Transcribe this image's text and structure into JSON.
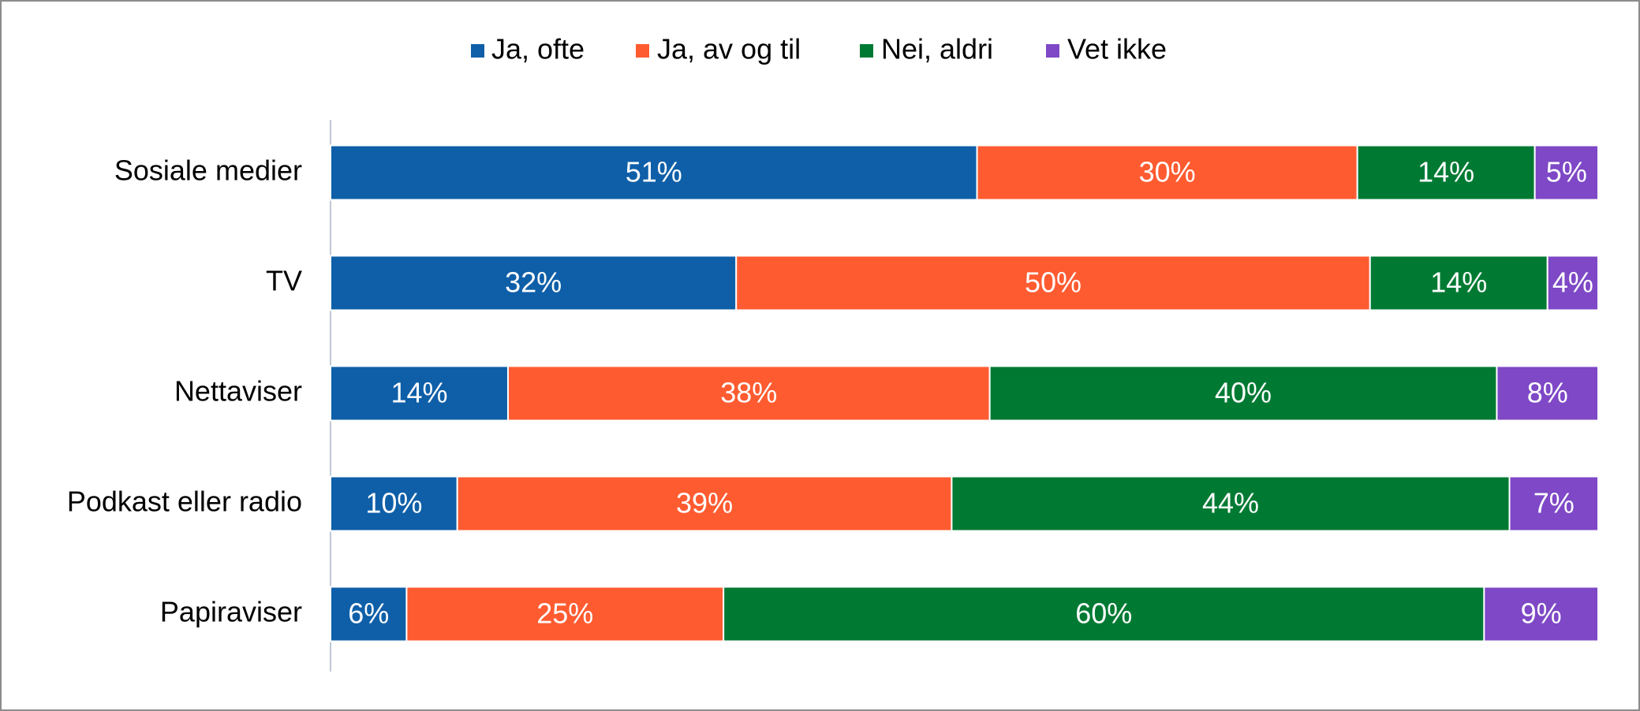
{
  "chart_data": {
    "type": "stacked-barh",
    "categories": [
      "Sosiale medier",
      "TV",
      "Nettaviser",
      "Podkast eller radio",
      "Papiraviser"
    ],
    "series": [
      {
        "name": "Ja, ofte",
        "color": "#0e5fa8",
        "values": [
          51,
          32,
          14,
          10,
          6
        ],
        "value_labels": [
          "51%",
          "32%",
          "14%",
          "10%",
          "6%"
        ]
      },
      {
        "name": "Ja, av og til",
        "color": "#ff5b31",
        "values": [
          30,
          50,
          38,
          39,
          25
        ],
        "value_labels": [
          "30%",
          "50%",
          "38%",
          "39%",
          "25%"
        ]
      },
      {
        "name": "Nei, aldri",
        "color": "#007a33",
        "values": [
          14,
          14,
          40,
          44,
          60
        ],
        "value_labels": [
          "14%",
          "14%",
          "40%",
          "44%",
          "60%"
        ]
      },
      {
        "name": "Vet ikke",
        "color": "#7e48c6",
        "values": [
          5,
          4,
          8,
          7,
          9
        ],
        "value_labels": [
          "5%",
          "4%",
          "8%",
          "7%",
          "9%"
        ]
      }
    ],
    "xlim": [
      0,
      100
    ],
    "legend": "top"
  }
}
